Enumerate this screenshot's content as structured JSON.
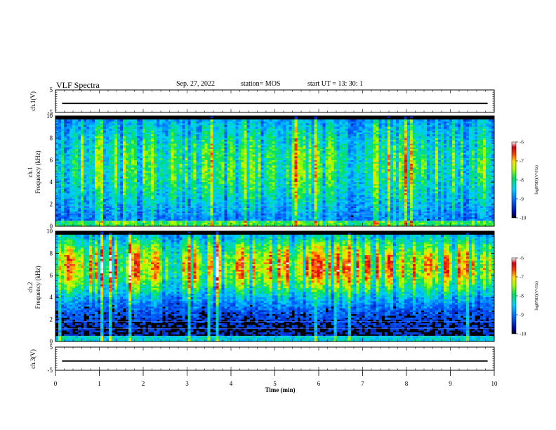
{
  "header": {
    "title": "VLF Spectra",
    "date": "Sep. 27, 2022",
    "station": "station= MOS",
    "start_ut": "start  UT =   13: 30: 1"
  },
  "chart_data": [
    {
      "type": "line",
      "panel": "ch.1 voltage",
      "ylabel": "ch.1(V)",
      "ylim": [
        -5,
        5
      ],
      "yticks": [
        "5",
        "-5"
      ],
      "level": -1
    },
    {
      "type": "heatmap",
      "panel": "ch.1 spectrogram",
      "ylabel_1": "ch.1",
      "ylabel_2": "Frequency (kHz)",
      "ylim": [
        0,
        10
      ],
      "yticks": [
        "0",
        "2",
        "4",
        "6",
        "8",
        "10"
      ],
      "colorbar": {
        "label": "log(PSD)(V²/Hz)",
        "range": [
          -10,
          -6
        ],
        "ticks": [
          "-6",
          "-7",
          "-8",
          "-9",
          "-10"
        ]
      }
    },
    {
      "type": "heatmap",
      "panel": "ch.2 spectrogram",
      "ylabel_1": "ch.2",
      "ylabel_2": "Frequency (kHz)",
      "ylim": [
        0,
        10
      ],
      "yticks": [
        "0",
        "2",
        "4",
        "6",
        "8",
        "10"
      ],
      "colorbar": {
        "label": "log(PSD)(V²/Hz)",
        "range": [
          -10,
          -6
        ],
        "ticks": [
          "-6",
          "-7",
          "-8",
          "-9",
          "-10"
        ]
      }
    },
    {
      "type": "line",
      "panel": "ch.3 voltage",
      "ylabel": "ch.3(V)",
      "ylim": [
        -5,
        5
      ],
      "yticks": [
        "5",
        "-5"
      ],
      "level": -1
    }
  ],
  "xaxis": {
    "label": "Time  (min)",
    "range": [
      0,
      10
    ],
    "ticks": [
      "0",
      "1",
      "2",
      "3",
      "4",
      "5",
      "6",
      "7",
      "8",
      "9",
      "10"
    ]
  },
  "colors": {
    "axis": "#000000",
    "spectrogram_background": "#000000"
  }
}
